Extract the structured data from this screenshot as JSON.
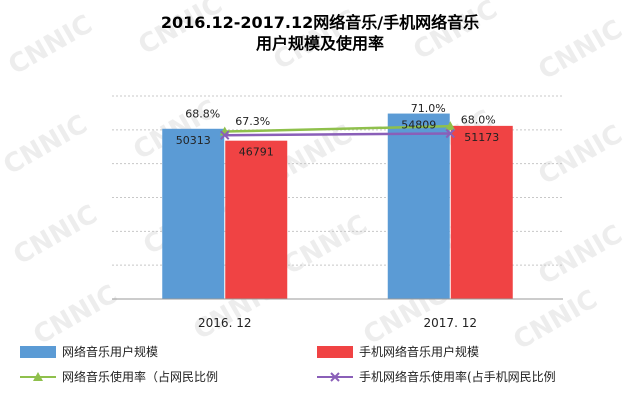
{
  "chart_data": {
    "type": "bar",
    "title": [
      "2016.12-2017.12网络音乐/手机网络音乐",
      "用户规模及使用率"
    ],
    "categories": [
      "2016. 12",
      "2017. 12"
    ],
    "bar_ylim": [
      0,
      60000
    ],
    "line_ylim": [
      0,
      83.4
    ],
    "series": [
      {
        "name": "网络音乐用户规模",
        "kind": "bar",
        "color": "#5b9bd5",
        "values": [
          50313,
          54809
        ],
        "labels": [
          "50313",
          "54809"
        ]
      },
      {
        "name": "手机网络音乐用户规模",
        "kind": "bar",
        "color": "#f04344",
        "values": [
          46791,
          51173
        ],
        "labels": [
          "46791",
          "51173"
        ]
      },
      {
        "name": "网络音乐使用率（占网民比例",
        "kind": "line",
        "color": "#8fc04c",
        "marker": "triangle",
        "values": [
          68.8,
          71.0
        ],
        "labels": [
          "68.8%",
          "71.0%"
        ]
      },
      {
        "name": "手机网络音乐使用率(占手机网民比例",
        "kind": "line",
        "color": "#8a5fb8",
        "marker": "x",
        "values": [
          67.3,
          68.0
        ],
        "labels": [
          "67.3%",
          "68.0%"
        ]
      }
    ],
    "grid": true,
    "legend": "bottom",
    "watermark": "CNNIC"
  }
}
